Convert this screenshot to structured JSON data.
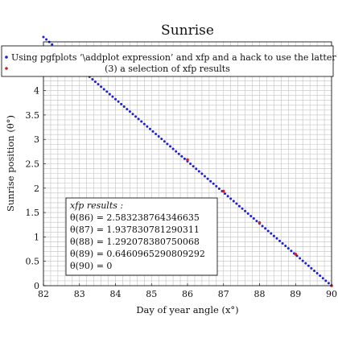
{
  "chart_data": {
    "type": "scatter",
    "title": "Sunrise",
    "xlabel": "Day of year angle (x°)",
    "ylabel": "Sunrise position (θ°)",
    "xlim": [
      82,
      90
    ],
    "ylim": [
      0,
      5
    ],
    "grid": true,
    "x_ticks": [
      82,
      83,
      84,
      85,
      86,
      87,
      88,
      89,
      90
    ],
    "y_ticks": [
      0,
      0.5,
      1,
      1.5,
      2,
      2.5,
      3,
      3.5,
      4
    ],
    "legend_position": "top",
    "series": [
      {
        "name": "Using pgfplots ‘\\addplot expression’ and xfp and a hack to use the latter",
        "color": "#1f1fd6",
        "marker": "dot",
        "x_start": 82,
        "x_end": 90,
        "y_start": 5.1,
        "y_end": 0
      },
      {
        "name": "(3) a selection of xfp results",
        "color": "#cc2222",
        "marker": "dot",
        "x": [
          86,
          87,
          88,
          89,
          90
        ],
        "y": [
          2.583238764346635,
          1.937830781290311,
          1.292078380750068,
          0.6460965290809292,
          0
        ]
      }
    ],
    "annotation": {
      "title": "xfp results :",
      "lines": [
        "θ(86) = 2.583238764346635",
        "θ(87) = 1.937830781290311",
        "θ(88) = 1.292078380750068",
        "θ(89) = 0.6460965290809292",
        "θ(90) = 0"
      ]
    }
  }
}
